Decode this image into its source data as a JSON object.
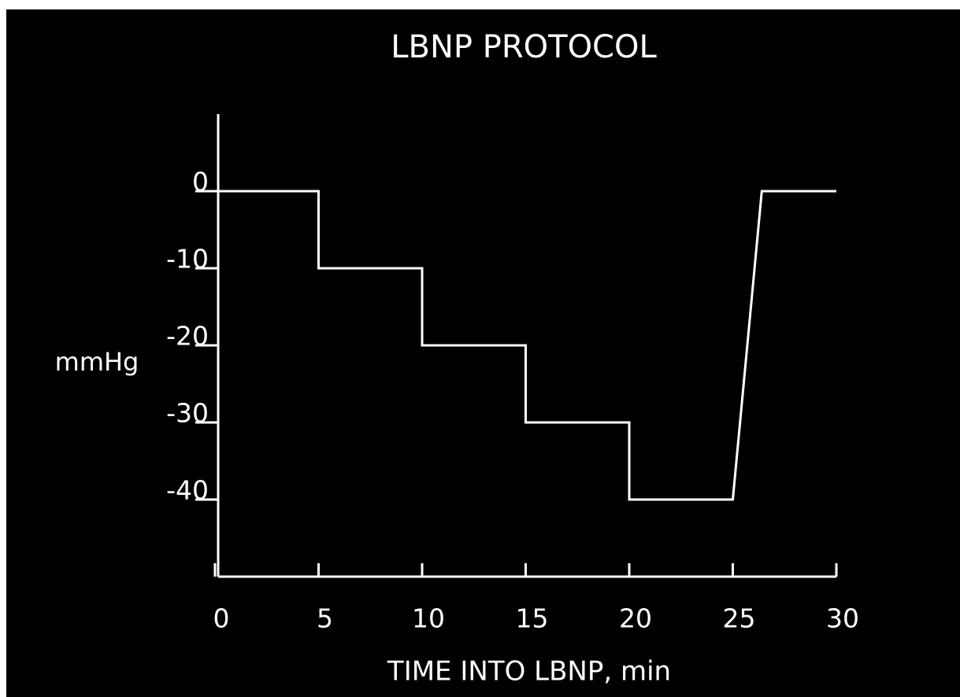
{
  "chart_data": {
    "type": "line",
    "title": "LBNP PROTOCOL",
    "xlabel": "TIME INTO LBNP, min",
    "ylabel": "mmHg",
    "x": [
      0,
      5,
      5,
      10,
      10,
      15,
      15,
      20,
      20,
      25,
      26.4,
      30
    ],
    "values": [
      0,
      0,
      -10,
      -10,
      -20,
      -20,
      -30,
      -30,
      -40,
      -40,
      0,
      0
    ],
    "color": "#ffffff",
    "background": "#000000",
    "xlim": [
      0,
      30
    ],
    "xticks": [
      0,
      5,
      10,
      15,
      20,
      25,
      30
    ],
    "ylim": [
      -50,
      10
    ],
    "yticks": [
      0,
      -10,
      -20,
      -30,
      -40
    ],
    "grid": false
  }
}
